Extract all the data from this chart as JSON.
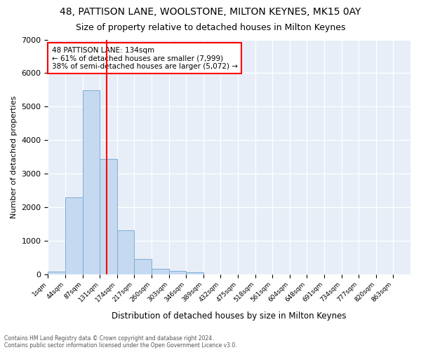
{
  "title1": "48, PATTISON LANE, WOOLSTONE, MILTON KEYNES, MK15 0AY",
  "title2": "Size of property relative to detached houses in Milton Keynes",
  "xlabel": "Distribution of detached houses by size in Milton Keynes",
  "ylabel": "Number of detached properties",
  "bin_labels": [
    "1sqm",
    "44sqm",
    "87sqm",
    "131sqm",
    "174sqm",
    "217sqm",
    "260sqm",
    "303sqm",
    "346sqm",
    "389sqm",
    "432sqm",
    "475sqm",
    "518sqm",
    "561sqm",
    "604sqm",
    "648sqm",
    "691sqm",
    "734sqm",
    "777sqm",
    "820sqm",
    "863sqm"
  ],
  "bar_heights": [
    70,
    2280,
    5480,
    3430,
    1310,
    460,
    160,
    90,
    60,
    0,
    0,
    0,
    0,
    0,
    0,
    0,
    0,
    0,
    0,
    0,
    0
  ],
  "bar_color": "#c5d9f1",
  "bar_edge_color": "#7bafd4",
  "vline_x": 3.4,
  "vline_color": "red",
  "annotation_text": "48 PATTISON LANE: 134sqm\n← 61% of detached houses are smaller (7,999)\n38% of semi-detached houses are larger (5,072) →",
  "annotation_box_color": "white",
  "annotation_box_edgecolor": "red",
  "ylim": [
    0,
    7000
  ],
  "yticks": [
    0,
    1000,
    2000,
    3000,
    4000,
    5000,
    6000,
    7000
  ],
  "footer1": "Contains HM Land Registry data © Crown copyright and database right 2024.",
  "footer2": "Contains public sector information licensed under the Open Government Licence v3.0.",
  "fig_bg_color": "#ffffff",
  "ax_bg_color": "#e8eef7",
  "grid_color": "#ffffff",
  "title1_fontsize": 10,
  "title2_fontsize": 9
}
